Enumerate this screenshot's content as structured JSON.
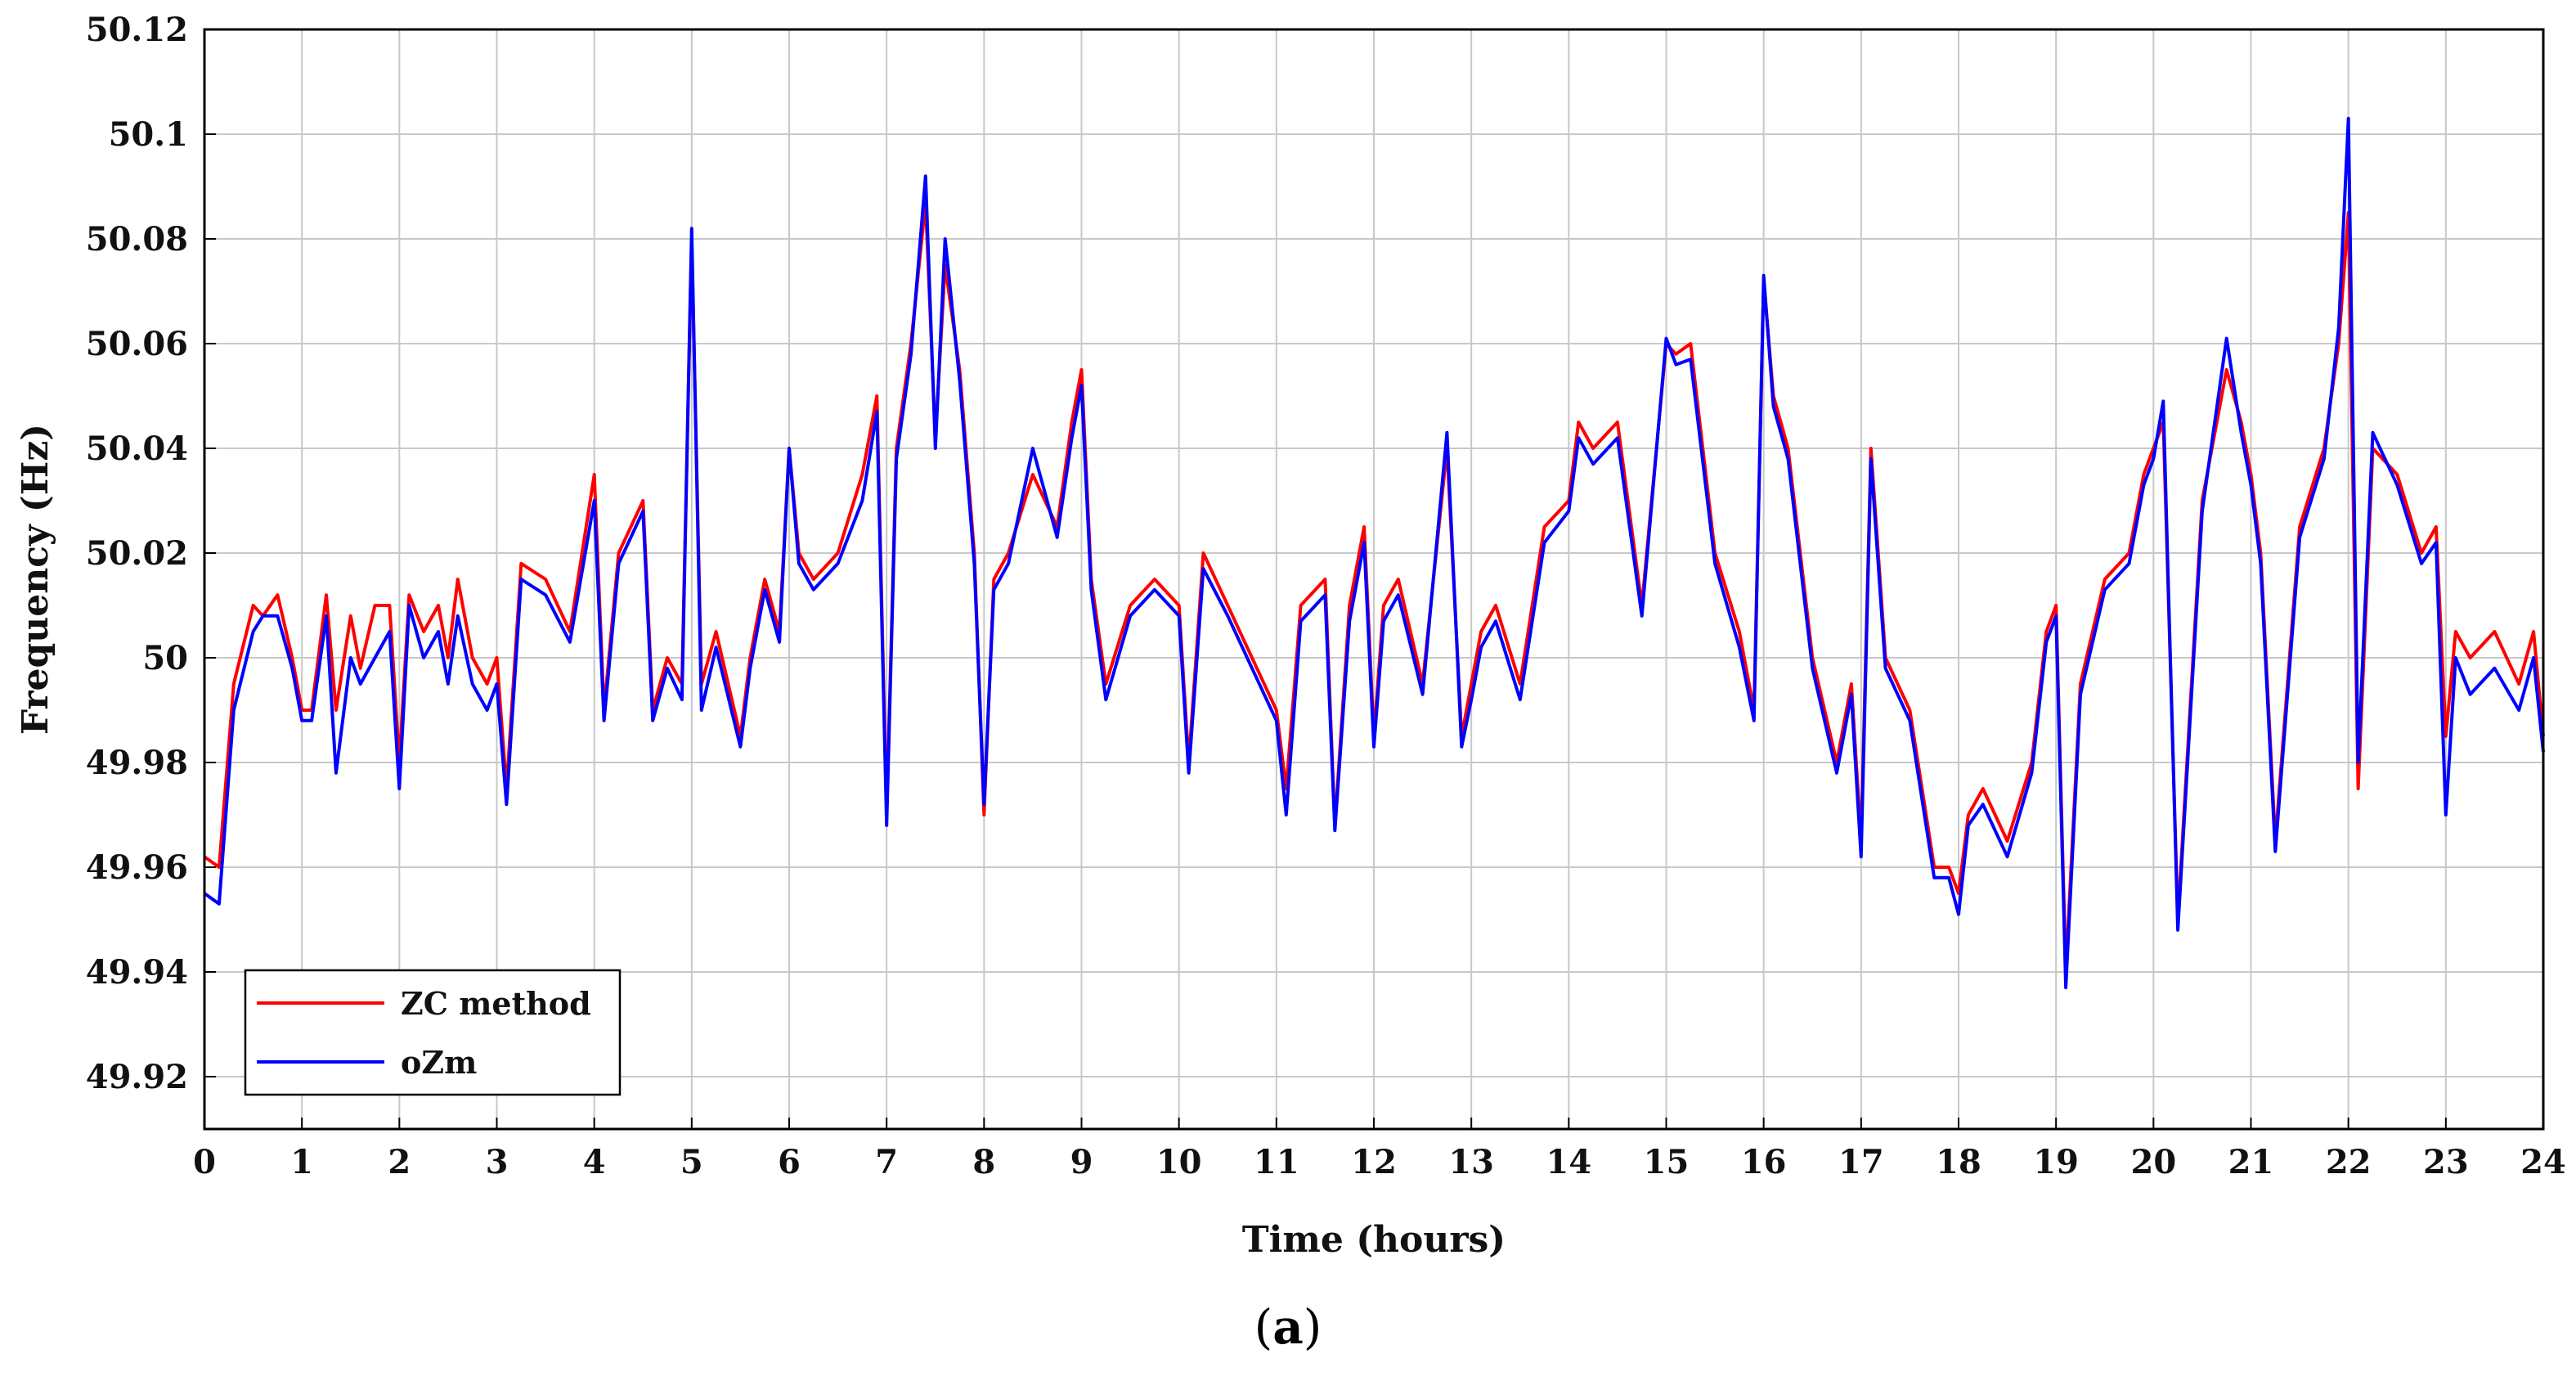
{
  "chart_data": {
    "type": "line",
    "title": "",
    "xlabel": "Time (hours)",
    "ylabel": "Frequency (Hz)",
    "xlim": [
      0,
      24
    ],
    "ylim": [
      49.91,
      50.12
    ],
    "x_ticks": [
      "0",
      "1",
      "2",
      "3",
      "4",
      "5",
      "6",
      "7",
      "8",
      "9",
      "10",
      "11",
      "12",
      "13",
      "14",
      "15",
      "16",
      "17",
      "18",
      "19",
      "20",
      "21",
      "22",
      "23",
      "24"
    ],
    "y_ticks": [
      "49.92",
      "49.94",
      "49.96",
      "49.98",
      "50",
      "50.02",
      "50.04",
      "50.06",
      "50.08",
      "50.1",
      "50.12"
    ],
    "grid": true,
    "legend_position": "bottom-left",
    "series": [
      {
        "name": "ZC method",
        "color": "#ff0000",
        "x": [
          0,
          0.15,
          0.3,
          0.5,
          0.6,
          0.75,
          0.9,
          1.0,
          1.1,
          1.25,
          1.35,
          1.5,
          1.6,
          1.75,
          1.9,
          2.0,
          2.1,
          2.25,
          2.4,
          2.5,
          2.6,
          2.75,
          2.9,
          3.0,
          3.1,
          3.25,
          3.5,
          3.75,
          4.0,
          4.1,
          4.25,
          4.5,
          4.6,
          4.75,
          4.9,
          5.0,
          5.1,
          5.25,
          5.5,
          5.6,
          5.75,
          5.9,
          6.0,
          6.1,
          6.25,
          6.5,
          6.75,
          6.9,
          7.0,
          7.1,
          7.25,
          7.4,
          7.5,
          7.6,
          7.75,
          7.9,
          8.0,
          8.1,
          8.25,
          8.5,
          8.75,
          8.9,
          9.0,
          9.1,
          9.25,
          9.5,
          9.75,
          10.0,
          10.1,
          10.25,
          10.5,
          10.75,
          11.0,
          11.1,
          11.25,
          11.5,
          11.6,
          11.75,
          11.9,
          12.0,
          12.1,
          12.25,
          12.5,
          12.75,
          12.9,
          13.0,
          13.1,
          13.25,
          13.5,
          13.75,
          14.0,
          14.1,
          14.25,
          14.5,
          14.75,
          15.0,
          15.1,
          15.25,
          15.5,
          15.75,
          15.9,
          16.0,
          16.1,
          16.25,
          16.5,
          16.75,
          16.9,
          17.0,
          17.1,
          17.25,
          17.5,
          17.75,
          17.9,
          18.0,
          18.1,
          18.25,
          18.5,
          18.75,
          18.9,
          19.0,
          19.1,
          19.25,
          19.5,
          19.75,
          19.9,
          20.0,
          20.1,
          20.25,
          20.5,
          20.75,
          20.9,
          21.0,
          21.1,
          21.25,
          21.5,
          21.75,
          21.9,
          22.0,
          22.1,
          22.25,
          22.5,
          22.75,
          22.9,
          23.0,
          23.1,
          23.25,
          23.5,
          23.75,
          23.9,
          24.0
        ],
        "values": [
          49.962,
          49.96,
          49.995,
          50.01,
          50.008,
          50.012,
          50.0,
          49.99,
          49.99,
          50.012,
          49.99,
          50.008,
          49.998,
          50.01,
          50.01,
          49.98,
          50.012,
          50.005,
          50.01,
          50.0,
          50.015,
          50.0,
          49.995,
          50.0,
          49.975,
          50.018,
          50.015,
          50.005,
          50.035,
          49.99,
          50.02,
          50.03,
          49.99,
          50.0,
          49.995,
          50.08,
          49.995,
          50.005,
          49.985,
          50.0,
          50.015,
          50.005,
          50.04,
          50.02,
          50.015,
          50.02,
          50.035,
          50.05,
          49.97,
          50.04,
          50.06,
          50.087,
          50.042,
          50.075,
          50.055,
          50.02,
          49.97,
          50.015,
          50.02,
          50.035,
          50.025,
          50.045,
          50.055,
          50.015,
          49.995,
          50.01,
          50.015,
          50.01,
          49.98,
          50.02,
          50.01,
          50.0,
          49.99,
          49.975,
          50.01,
          50.015,
          49.968,
          50.01,
          50.025,
          49.985,
          50.01,
          50.015,
          49.995,
          50.04,
          49.985,
          49.995,
          50.005,
          50.01,
          49.995,
          50.025,
          50.03,
          50.045,
          50.04,
          50.045,
          50.01,
          50.06,
          50.058,
          50.06,
          50.02,
          50.005,
          49.99,
          50.072,
          50.05,
          50.04,
          50.0,
          49.98,
          49.995,
          49.965,
          50.04,
          50.0,
          49.99,
          49.96,
          49.96,
          49.955,
          49.97,
          49.975,
          49.965,
          49.98,
          50.005,
          50.01,
          49.94,
          49.995,
          50.015,
          50.02,
          50.035,
          50.04,
          50.045,
          49.95,
          50.03,
          50.055,
          50.045,
          50.035,
          50.02,
          49.965,
          50.025,
          50.04,
          50.06,
          50.085,
          49.975,
          50.04,
          50.035,
          50.02,
          50.025,
          49.985,
          50.005,
          50.0,
          50.005,
          49.995,
          50.005,
          49.985
        ]
      },
      {
        "name": "oZm",
        "color": "#0000ff",
        "x": [
          0,
          0.15,
          0.3,
          0.5,
          0.6,
          0.75,
          0.9,
          1.0,
          1.1,
          1.25,
          1.35,
          1.5,
          1.6,
          1.75,
          1.9,
          2.0,
          2.1,
          2.25,
          2.4,
          2.5,
          2.6,
          2.75,
          2.9,
          3.0,
          3.1,
          3.25,
          3.5,
          3.75,
          4.0,
          4.1,
          4.25,
          4.5,
          4.6,
          4.75,
          4.9,
          5.0,
          5.1,
          5.25,
          5.5,
          5.6,
          5.75,
          5.9,
          6.0,
          6.1,
          6.25,
          6.5,
          6.75,
          6.9,
          7.0,
          7.1,
          7.25,
          7.4,
          7.5,
          7.6,
          7.75,
          7.9,
          8.0,
          8.1,
          8.25,
          8.5,
          8.75,
          8.9,
          9.0,
          9.1,
          9.25,
          9.5,
          9.75,
          10.0,
          10.1,
          10.25,
          10.5,
          10.75,
          11.0,
          11.1,
          11.25,
          11.5,
          11.6,
          11.75,
          11.9,
          12.0,
          12.1,
          12.25,
          12.5,
          12.75,
          12.9,
          13.0,
          13.1,
          13.25,
          13.5,
          13.75,
          14.0,
          14.1,
          14.25,
          14.5,
          14.75,
          15.0,
          15.1,
          15.25,
          15.5,
          15.75,
          15.9,
          16.0,
          16.1,
          16.25,
          16.5,
          16.75,
          16.9,
          17.0,
          17.1,
          17.25,
          17.5,
          17.75,
          17.9,
          18.0,
          18.1,
          18.25,
          18.5,
          18.75,
          18.9,
          19.0,
          19.1,
          19.25,
          19.5,
          19.75,
          19.9,
          20.0,
          20.1,
          20.25,
          20.5,
          20.75,
          20.9,
          21.0,
          21.1,
          21.25,
          21.5,
          21.75,
          21.9,
          22.0,
          22.1,
          22.25,
          22.5,
          22.75,
          22.9,
          23.0,
          23.1,
          23.25,
          23.5,
          23.75,
          23.9,
          24.0
        ],
        "values": [
          49.955,
          49.953,
          49.99,
          50.005,
          50.008,
          50.008,
          49.998,
          49.988,
          49.988,
          50.008,
          49.978,
          50.0,
          49.995,
          50.0,
          50.005,
          49.975,
          50.01,
          50.0,
          50.005,
          49.995,
          50.008,
          49.995,
          49.99,
          49.995,
          49.972,
          50.015,
          50.012,
          50.003,
          50.03,
          49.988,
          50.018,
          50.028,
          49.988,
          49.998,
          49.992,
          50.082,
          49.99,
          50.002,
          49.983,
          49.998,
          50.013,
          50.003,
          50.04,
          50.018,
          50.013,
          50.018,
          50.03,
          50.047,
          49.968,
          50.038,
          50.058,
          50.092,
          50.04,
          50.08,
          50.053,
          50.018,
          49.972,
          50.013,
          50.018,
          50.04,
          50.023,
          50.042,
          50.052,
          50.013,
          49.992,
          50.008,
          50.013,
          50.008,
          49.978,
          50.017,
          50.008,
          49.998,
          49.988,
          49.97,
          50.007,
          50.012,
          49.967,
          50.007,
          50.022,
          49.983,
          50.007,
          50.012,
          49.993,
          50.043,
          49.983,
          49.992,
          50.002,
          50.007,
          49.992,
          50.022,
          50.028,
          50.042,
          50.037,
          50.042,
          50.008,
          50.061,
          50.056,
          50.057,
          50.018,
          50.002,
          49.988,
          50.073,
          50.048,
          50.038,
          49.998,
          49.978,
          49.993,
          49.962,
          50.038,
          49.998,
          49.988,
          49.958,
          49.958,
          49.951,
          49.968,
          49.972,
          49.962,
          49.978,
          50.003,
          50.008,
          49.937,
          49.993,
          50.013,
          50.018,
          50.033,
          50.038,
          50.049,
          49.948,
          50.028,
          50.061,
          50.043,
          50.033,
          50.018,
          49.963,
          50.023,
          50.038,
          50.063,
          50.103,
          49.98,
          50.043,
          50.033,
          50.018,
          50.022,
          49.97,
          50.0,
          49.993,
          49.998,
          49.99,
          50.0,
          49.982
        ]
      }
    ]
  },
  "caption": {
    "open": "(",
    "letter": "a",
    "close": ")"
  }
}
